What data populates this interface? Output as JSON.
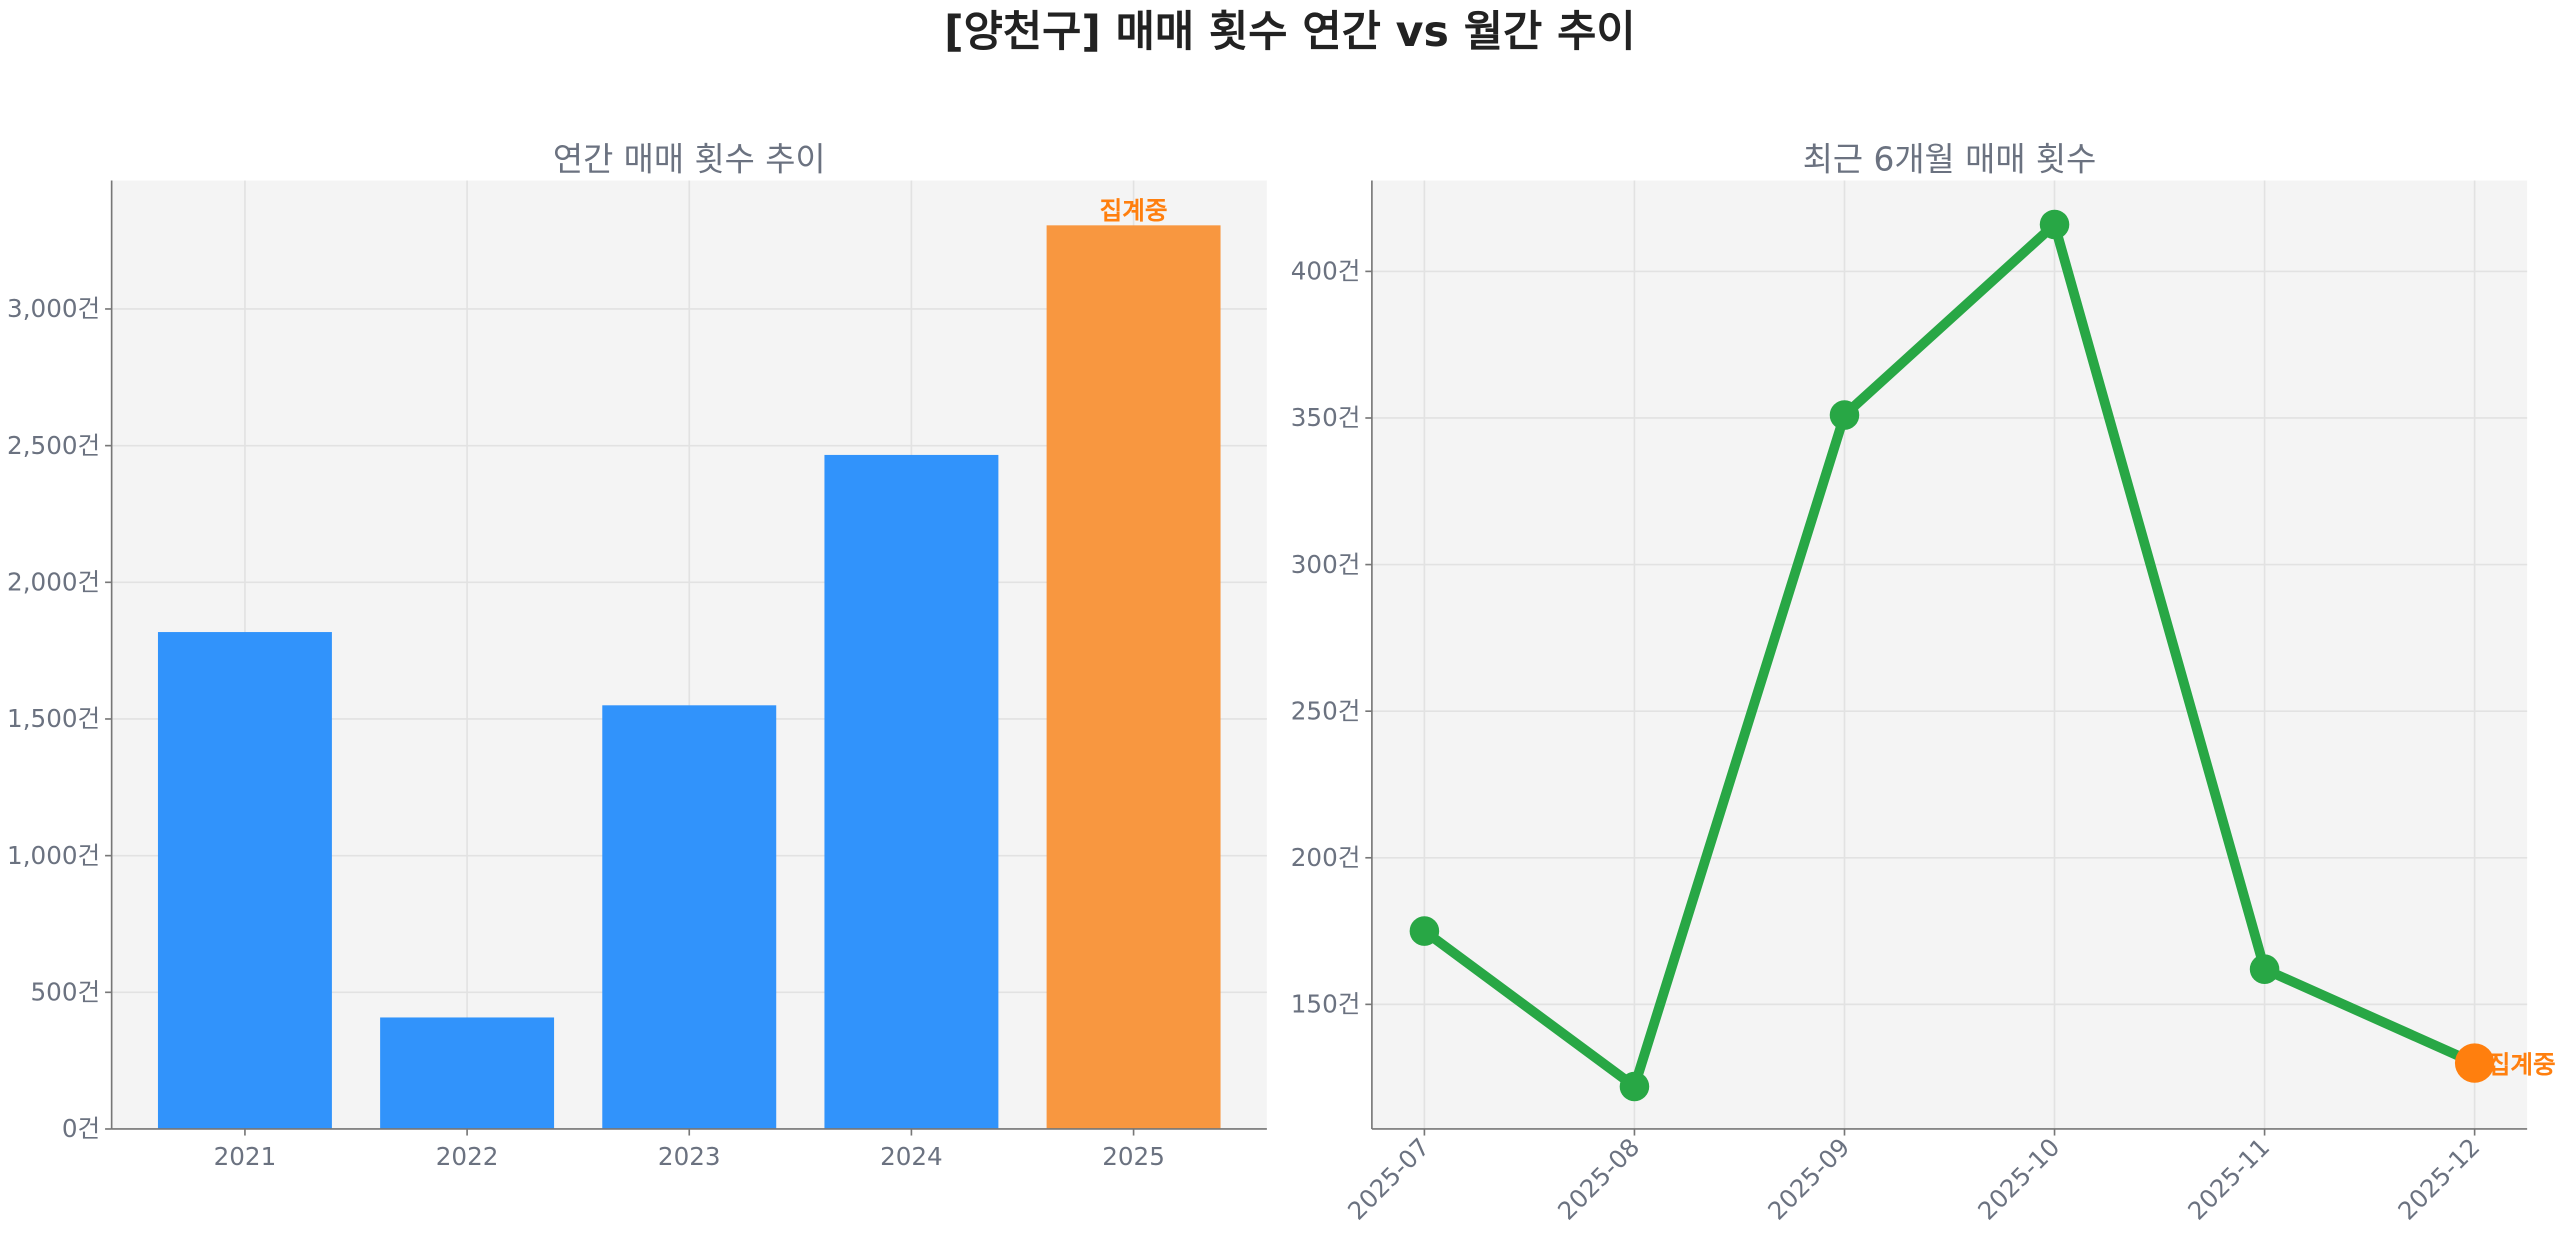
{
  "title": "[양천구] 매매 횟수 연간 vs 월간 추이",
  "chart_data": [
    {
      "type": "bar",
      "title": "연간 매매 횟수 추이",
      "categories": [
        "2021",
        "2022",
        "2023",
        "2024",
        "2025"
      ],
      "values": [
        1818,
        408,
        1550,
        2466,
        3306
      ],
      "colors": [
        "#3193fb",
        "#3193fb",
        "#3193fb",
        "#3193fb",
        "#f89740"
      ],
      "annotations": [
        {
          "category": "2025",
          "text": "집계중",
          "color": "#ff7f0e"
        }
      ],
      "ylim": [
        0,
        3470
      ],
      "yticks": [
        0,
        500,
        1000,
        1500,
        2000,
        2500,
        3000
      ],
      "ytick_labels": [
        "0건",
        "500건",
        "1,000건",
        "1,500건",
        "2,000건",
        "2,500건",
        "3,000건"
      ],
      "grid": true,
      "xlabel": "",
      "ylabel": ""
    },
    {
      "type": "line",
      "title": "최근 6개월 매매 횟수",
      "x": [
        "2025-07",
        "2025-08",
        "2025-09",
        "2025-10",
        "2025-11",
        "2025-12"
      ],
      "series": [
        {
          "values": [
            175,
            122,
            351,
            416,
            162,
            130
          ],
          "color": "#28a745"
        }
      ],
      "highlight": {
        "x": "2025-12",
        "text": "집계중",
        "color": "#ff7f0e"
      },
      "ylim": [
        107.5,
        431
      ],
      "yticks": [
        150,
        200,
        250,
        300,
        350,
        400
      ],
      "ytick_labels": [
        "150건",
        "200건",
        "250건",
        "300건",
        "350건",
        "400건"
      ],
      "grid": true,
      "xlabel": "",
      "ylabel": ""
    }
  ]
}
